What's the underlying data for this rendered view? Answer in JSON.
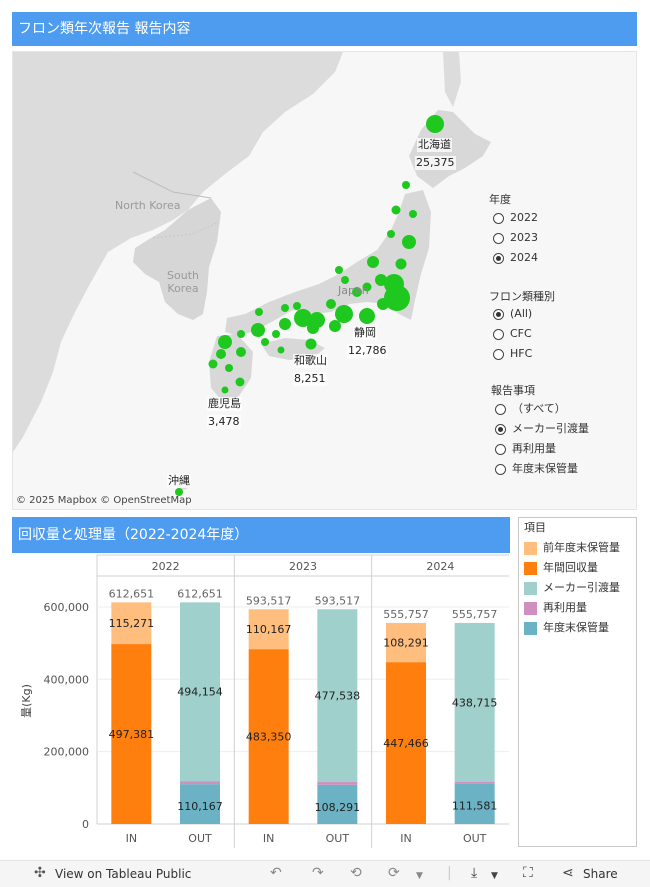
{
  "map_title": "フロン類年次報告 報告内容",
  "map": {
    "country_labels": [
      "North Korea",
      "South Korea",
      "Japan"
    ],
    "points": [
      {
        "name": "北海道",
        "value": "25,375"
      },
      {
        "name": "静岡",
        "value": "12,786"
      },
      {
        "name": "和歌山",
        "value": "8,251"
      },
      {
        "name": "鹿児島",
        "value": "3,478"
      },
      {
        "name": "沖縄",
        "value": ""
      }
    ],
    "attribution": "© 2025 Mapbox  © OpenStreetMap",
    "point_color": "#1ec81e"
  },
  "filters": {
    "year": {
      "title": "年度",
      "options": [
        "2022",
        "2023",
        "2024"
      ],
      "selected": "2024"
    },
    "freon_type": {
      "title": "フロン類種別",
      "options": [
        "(All)",
        "CFC",
        "HFC"
      ],
      "selected": "(All)"
    },
    "report_item": {
      "title": "報告事項",
      "options": [
        "（すべて）",
        "メーカー引渡量",
        "再利用量",
        "年度末保管量"
      ],
      "selected": "メーカー引渡量"
    }
  },
  "chart_title": "回収量と処理量（2022-2024年度）",
  "legend": {
    "title": "項目",
    "items": [
      {
        "label": "前年度末保管量",
        "color": "#ffbe7d"
      },
      {
        "label": "年間回収量",
        "color": "#ff7f0e"
      },
      {
        "label": "メーカー引渡量",
        "color": "#9fd0cb"
      },
      {
        "label": "再利用量",
        "color": "#cf8fbf"
      },
      {
        "label": "年度末保管量",
        "color": "#6bb3c4"
      }
    ]
  },
  "chart_data": {
    "type": "bar",
    "stacked": true,
    "ylabel": "量(Kg)",
    "ylim": [
      0,
      680000
    ],
    "yticks": [
      0,
      200000,
      400000,
      600000
    ],
    "ytick_labels": [
      "0",
      "200,000",
      "400,000",
      "600,000"
    ],
    "panels": [
      {
        "year": "2022",
        "bars": [
          {
            "label": "IN",
            "total": "612,651",
            "segments": [
              {
                "item": "年間回収量",
                "value": 497381,
                "text": "497,381"
              },
              {
                "item": "前年度末保管量",
                "value": 115271,
                "text": "115,271"
              }
            ]
          },
          {
            "label": "OUT",
            "total": "612,651",
            "segments": [
              {
                "item": "年度末保管量",
                "value": 110167,
                "text": "110,167"
              },
              {
                "item": "再利用量",
                "value": 8331,
                "text": "8,331"
              },
              {
                "item": "メーカー引渡量",
                "value": 494154,
                "text": "494,154"
              }
            ]
          }
        ]
      },
      {
        "year": "2023",
        "bars": [
          {
            "label": "IN",
            "total": "593,517",
            "segments": [
              {
                "item": "年間回収量",
                "value": 483350,
                "text": "483,350"
              },
              {
                "item": "前年度末保管量",
                "value": 110167,
                "text": "110,167"
              }
            ]
          },
          {
            "label": "OUT",
            "total": "593,517",
            "segments": [
              {
                "item": "年度末保管量",
                "value": 108291,
                "text": "108,291"
              },
              {
                "item": "再利用量",
                "value": 7688,
                "text": "7,688"
              },
              {
                "item": "メーカー引渡量",
                "value": 477538,
                "text": "477,538"
              }
            ]
          }
        ]
      },
      {
        "year": "2024",
        "bars": [
          {
            "label": "IN",
            "total": "555,757",
            "segments": [
              {
                "item": "年間回収量",
                "value": 447466,
                "text": "447,466"
              },
              {
                "item": "前年度末保管量",
                "value": 108291,
                "text": "108,291"
              }
            ]
          },
          {
            "label": "OUT",
            "total": "555,757",
            "segments": [
              {
                "item": "年度末保管量",
                "value": 111581,
                "text": "111,581"
              },
              {
                "item": "再利用量",
                "value": 5461,
                "text": "5,461"
              },
              {
                "item": "メーカー引渡量",
                "value": 438715,
                "text": "438,715"
              }
            ]
          }
        ]
      }
    ]
  },
  "toolbar": {
    "view_label": "View on Tableau Public",
    "share_label": "Share"
  }
}
